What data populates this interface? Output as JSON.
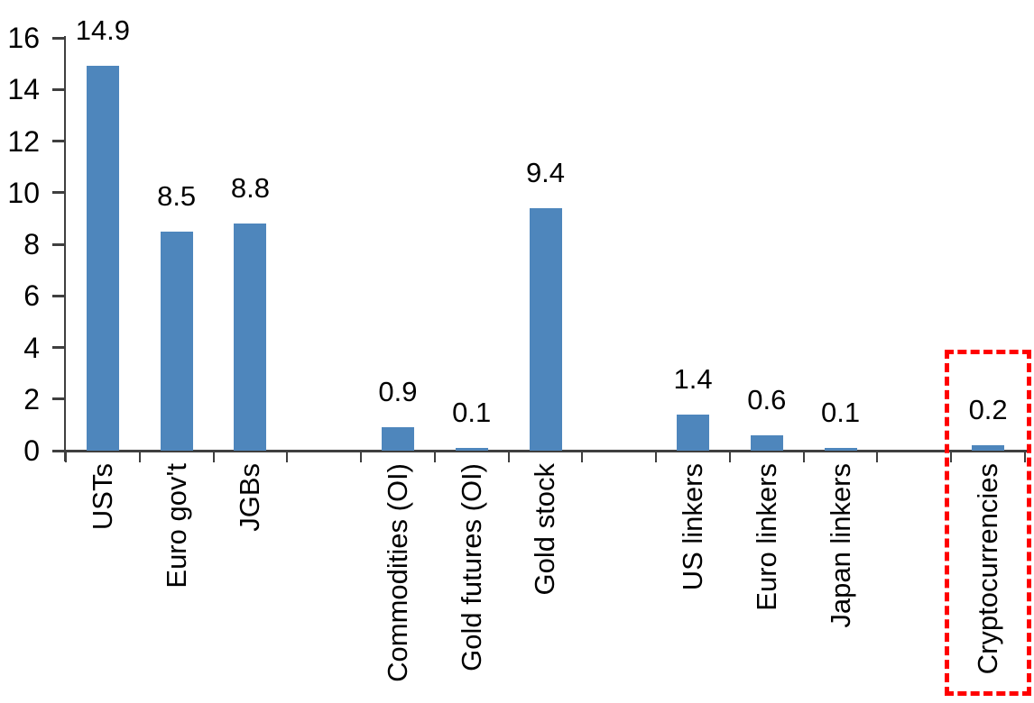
{
  "chart_data": {
    "type": "bar",
    "title": "",
    "xlabel": "",
    "ylabel": "",
    "categories": [
      "USTs",
      "Euro gov't",
      "JGBs",
      "",
      "Commodities (OI)",
      "Gold futures (OI)",
      "Gold stock",
      "",
      "US linkers",
      "Euro linkers",
      "Japan linkers",
      "",
      "Cryptocurrencies"
    ],
    "values": [
      14.9,
      8.5,
      8.8,
      null,
      0.9,
      0.1,
      9.4,
      null,
      1.4,
      0.6,
      0.1,
      null,
      0.2
    ],
    "data_labels": [
      "14.9",
      "8.5",
      "8.8",
      "",
      "0.9",
      "0.1",
      "9.4",
      "",
      "1.4",
      "0.6",
      "0.1",
      "",
      "0.2"
    ],
    "ylim": [
      0,
      16
    ],
    "yticks": [
      0,
      2,
      4,
      6,
      8,
      10,
      12,
      14,
      16
    ],
    "grid": false,
    "legend": false,
    "bar_color": "#4E86BC",
    "axis_color": "#3F3F3F",
    "text_color": "#000000",
    "highlight": {
      "category": "Cryptocurrencies",
      "index": 12,
      "style": "red-dashed-box",
      "color": "#FF0000",
      "value_label": "0.2"
    }
  }
}
